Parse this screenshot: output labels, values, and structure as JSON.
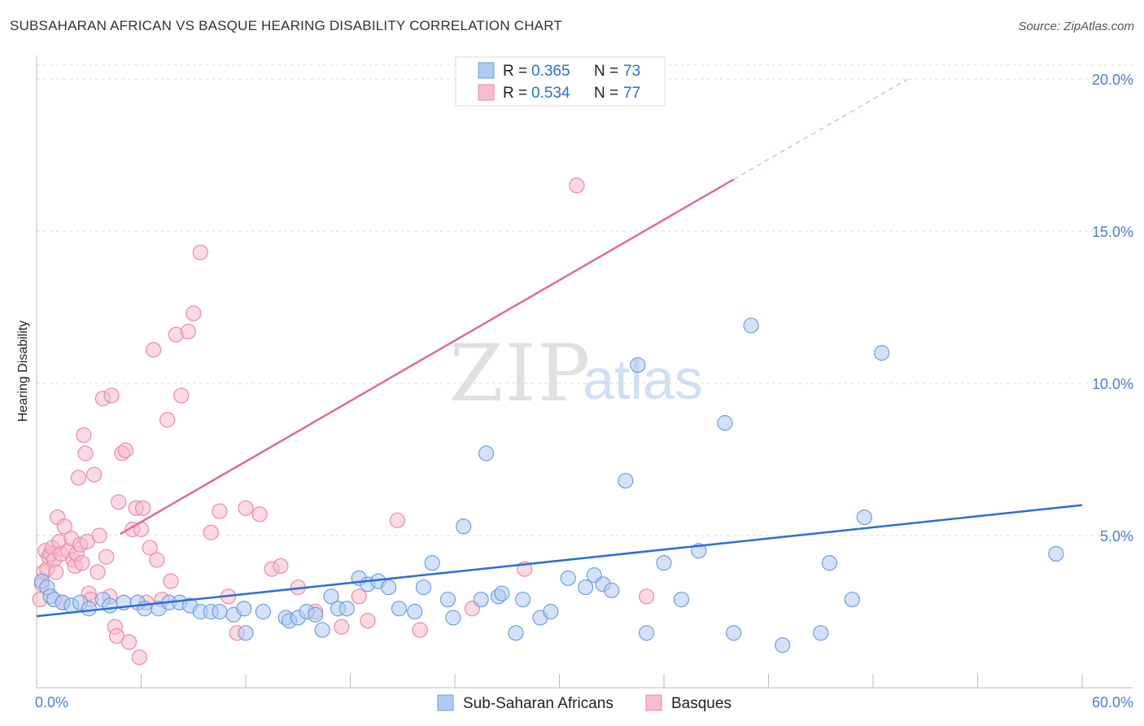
{
  "header": {
    "title": "SUBSAHARAN AFRICAN VS BASQUE HEARING DISABILITY CORRELATION CHART",
    "source": "Source: ZipAtlas.com"
  },
  "watermark": {
    "zip": "ZIP",
    "atlas": "atlas"
  },
  "legend_top": [
    {
      "r_label": "R =",
      "r_value": "0.365",
      "n_label": "N =",
      "n_value": "73"
    },
    {
      "r_label": "R =",
      "r_value": "0.534",
      "n_label": "N =",
      "n_value": "77"
    }
  ],
  "legend_bottom": [
    {
      "label": "Sub-Saharan Africans"
    },
    {
      "label": "Basques"
    }
  ],
  "colors": {
    "blue_fill": "#aecbf2",
    "blue_stroke": "#6f9fe0",
    "blue_line": "#2a6fd6",
    "pink_fill": "#f8bccb",
    "pink_stroke": "#ec8aa5",
    "pink_line": "#e36a94",
    "tick_color": "#4a7fd4",
    "grid": "#dddddd"
  },
  "chart_data": {
    "type": "scatter",
    "title": "SUBSAHARAN AFRICAN VS BASQUE HEARING DISABILITY CORRELATION CHART",
    "xlabel": "",
    "ylabel": "Hearing Disability",
    "xlim": [
      0,
      60
    ],
    "ylim": [
      0,
      20
    ],
    "x_tick_labels": [
      "0.0%",
      "60.0%"
    ],
    "y_ticks": [
      {
        "value": 5,
        "label": "5.0%"
      },
      {
        "value": 10,
        "label": "10.0%"
      },
      {
        "value": 15,
        "label": "15.0%"
      },
      {
        "value": 20,
        "label": "20.0%"
      }
    ],
    "grid": true,
    "series": [
      {
        "name": "Sub-Saharan Africans",
        "color": "blue",
        "trend": {
          "x1": 0,
          "y1": 2.35,
          "x2": 60,
          "y2": 6.0
        },
        "points": [
          [
            0.3,
            3.5
          ],
          [
            0.6,
            3.3
          ],
          [
            0.8,
            3.0
          ],
          [
            1.0,
            2.9
          ],
          [
            1.5,
            2.8
          ],
          [
            2.0,
            2.7
          ],
          [
            2.5,
            2.8
          ],
          [
            3.0,
            2.6
          ],
          [
            3.8,
            2.9
          ],
          [
            4.2,
            2.7
          ],
          [
            5.0,
            2.8
          ],
          [
            5.8,
            2.8
          ],
          [
            6.2,
            2.6
          ],
          [
            7.0,
            2.6
          ],
          [
            7.6,
            2.8
          ],
          [
            8.2,
            2.8
          ],
          [
            8.8,
            2.7
          ],
          [
            9.4,
            2.5
          ],
          [
            10.0,
            2.5
          ],
          [
            10.5,
            2.5
          ],
          [
            11.3,
            2.4
          ],
          [
            11.9,
            2.6
          ],
          [
            12.0,
            1.8
          ],
          [
            13.0,
            2.5
          ],
          [
            14.3,
            2.3
          ],
          [
            14.5,
            2.2
          ],
          [
            15.0,
            2.3
          ],
          [
            15.5,
            2.5
          ],
          [
            16.0,
            2.4
          ],
          [
            16.4,
            1.9
          ],
          [
            16.9,
            3.0
          ],
          [
            17.3,
            2.6
          ],
          [
            17.8,
            2.6
          ],
          [
            18.5,
            3.6
          ],
          [
            19.0,
            3.4
          ],
          [
            19.6,
            3.5
          ],
          [
            20.2,
            3.3
          ],
          [
            20.8,
            2.6
          ],
          [
            21.7,
            2.5
          ],
          [
            22.2,
            3.3
          ],
          [
            22.7,
            4.1
          ],
          [
            23.6,
            2.9
          ],
          [
            23.9,
            2.3
          ],
          [
            24.5,
            5.3
          ],
          [
            25.5,
            2.9
          ],
          [
            25.8,
            7.7
          ],
          [
            26.5,
            3.0
          ],
          [
            26.7,
            3.1
          ],
          [
            27.5,
            1.8
          ],
          [
            27.9,
            2.9
          ],
          [
            28.9,
            2.3
          ],
          [
            29.5,
            2.5
          ],
          [
            30.5,
            3.6
          ],
          [
            31.5,
            3.3
          ],
          [
            32.0,
            3.7
          ],
          [
            32.5,
            3.4
          ],
          [
            33.0,
            3.2
          ],
          [
            33.8,
            6.8
          ],
          [
            34.5,
            10.6
          ],
          [
            35.0,
            1.8
          ],
          [
            36.0,
            4.1
          ],
          [
            37.0,
            2.9
          ],
          [
            38.0,
            4.5
          ],
          [
            39.5,
            8.7
          ],
          [
            40.0,
            1.8
          ],
          [
            41.0,
            11.9
          ],
          [
            42.8,
            1.4
          ],
          [
            45.0,
            1.8
          ],
          [
            45.5,
            4.1
          ],
          [
            46.8,
            2.9
          ],
          [
            47.5,
            5.6
          ],
          [
            48.5,
            11.0
          ],
          [
            58.5,
            4.4
          ]
        ]
      },
      {
        "name": "Basques",
        "color": "pink",
        "trend": {
          "x1": 4.8,
          "y1": 5.05,
          "x2": 40.0,
          "y2": 16.7,
          "dash_x2": 50.0,
          "dash_y2": 20.0
        },
        "points": [
          [
            0.2,
            2.9
          ],
          [
            0.3,
            3.4
          ],
          [
            0.4,
            3.8
          ],
          [
            0.5,
            4.5
          ],
          [
            0.6,
            3.9
          ],
          [
            0.7,
            4.3
          ],
          [
            0.8,
            4.4
          ],
          [
            0.9,
            4.6
          ],
          [
            1.0,
            4.2
          ],
          [
            1.1,
            3.8
          ],
          [
            1.2,
            5.6
          ],
          [
            1.3,
            4.8
          ],
          [
            1.4,
            4.4
          ],
          [
            1.5,
            2.8
          ],
          [
            1.6,
            5.3
          ],
          [
            1.8,
            4.5
          ],
          [
            2.0,
            4.9
          ],
          [
            2.1,
            4.2
          ],
          [
            2.2,
            4.0
          ],
          [
            2.3,
            4.4
          ],
          [
            2.4,
            6.9
          ],
          [
            2.5,
            4.7
          ],
          [
            2.6,
            4.1
          ],
          [
            2.7,
            8.3
          ],
          [
            2.8,
            7.7
          ],
          [
            2.9,
            4.8
          ],
          [
            3.0,
            3.1
          ],
          [
            3.1,
            2.9
          ],
          [
            3.3,
            7.0
          ],
          [
            3.5,
            3.8
          ],
          [
            3.6,
            5.0
          ],
          [
            3.8,
            9.5
          ],
          [
            4.0,
            4.3
          ],
          [
            4.2,
            3.0
          ],
          [
            4.3,
            9.6
          ],
          [
            4.5,
            2.0
          ],
          [
            4.6,
            1.7
          ],
          [
            4.7,
            6.1
          ],
          [
            4.9,
            7.7
          ],
          [
            5.1,
            7.8
          ],
          [
            5.3,
            1.5
          ],
          [
            5.5,
            5.2
          ],
          [
            5.7,
            5.9
          ],
          [
            5.9,
            1.0
          ],
          [
            6.0,
            5.2
          ],
          [
            6.1,
            5.9
          ],
          [
            6.3,
            2.8
          ],
          [
            6.5,
            4.6
          ],
          [
            6.7,
            11.1
          ],
          [
            6.9,
            4.2
          ],
          [
            7.2,
            2.9
          ],
          [
            7.5,
            8.8
          ],
          [
            7.7,
            3.5
          ],
          [
            8.0,
            11.6
          ],
          [
            8.3,
            9.6
          ],
          [
            8.7,
            11.7
          ],
          [
            9.0,
            12.3
          ],
          [
            9.4,
            14.3
          ],
          [
            10.0,
            5.1
          ],
          [
            10.5,
            5.8
          ],
          [
            11.0,
            3.0
          ],
          [
            11.5,
            1.8
          ],
          [
            12.0,
            5.9
          ],
          [
            12.8,
            5.7
          ],
          [
            13.5,
            3.9
          ],
          [
            14.0,
            4.0
          ],
          [
            15.0,
            3.3
          ],
          [
            16.0,
            2.5
          ],
          [
            17.5,
            2.0
          ],
          [
            18.5,
            3.0
          ],
          [
            19.0,
            2.2
          ],
          [
            20.7,
            5.5
          ],
          [
            22.0,
            1.9
          ],
          [
            25.0,
            2.6
          ],
          [
            28.0,
            3.9
          ],
          [
            31.0,
            16.5
          ],
          [
            35.0,
            3.0
          ]
        ]
      }
    ]
  }
}
